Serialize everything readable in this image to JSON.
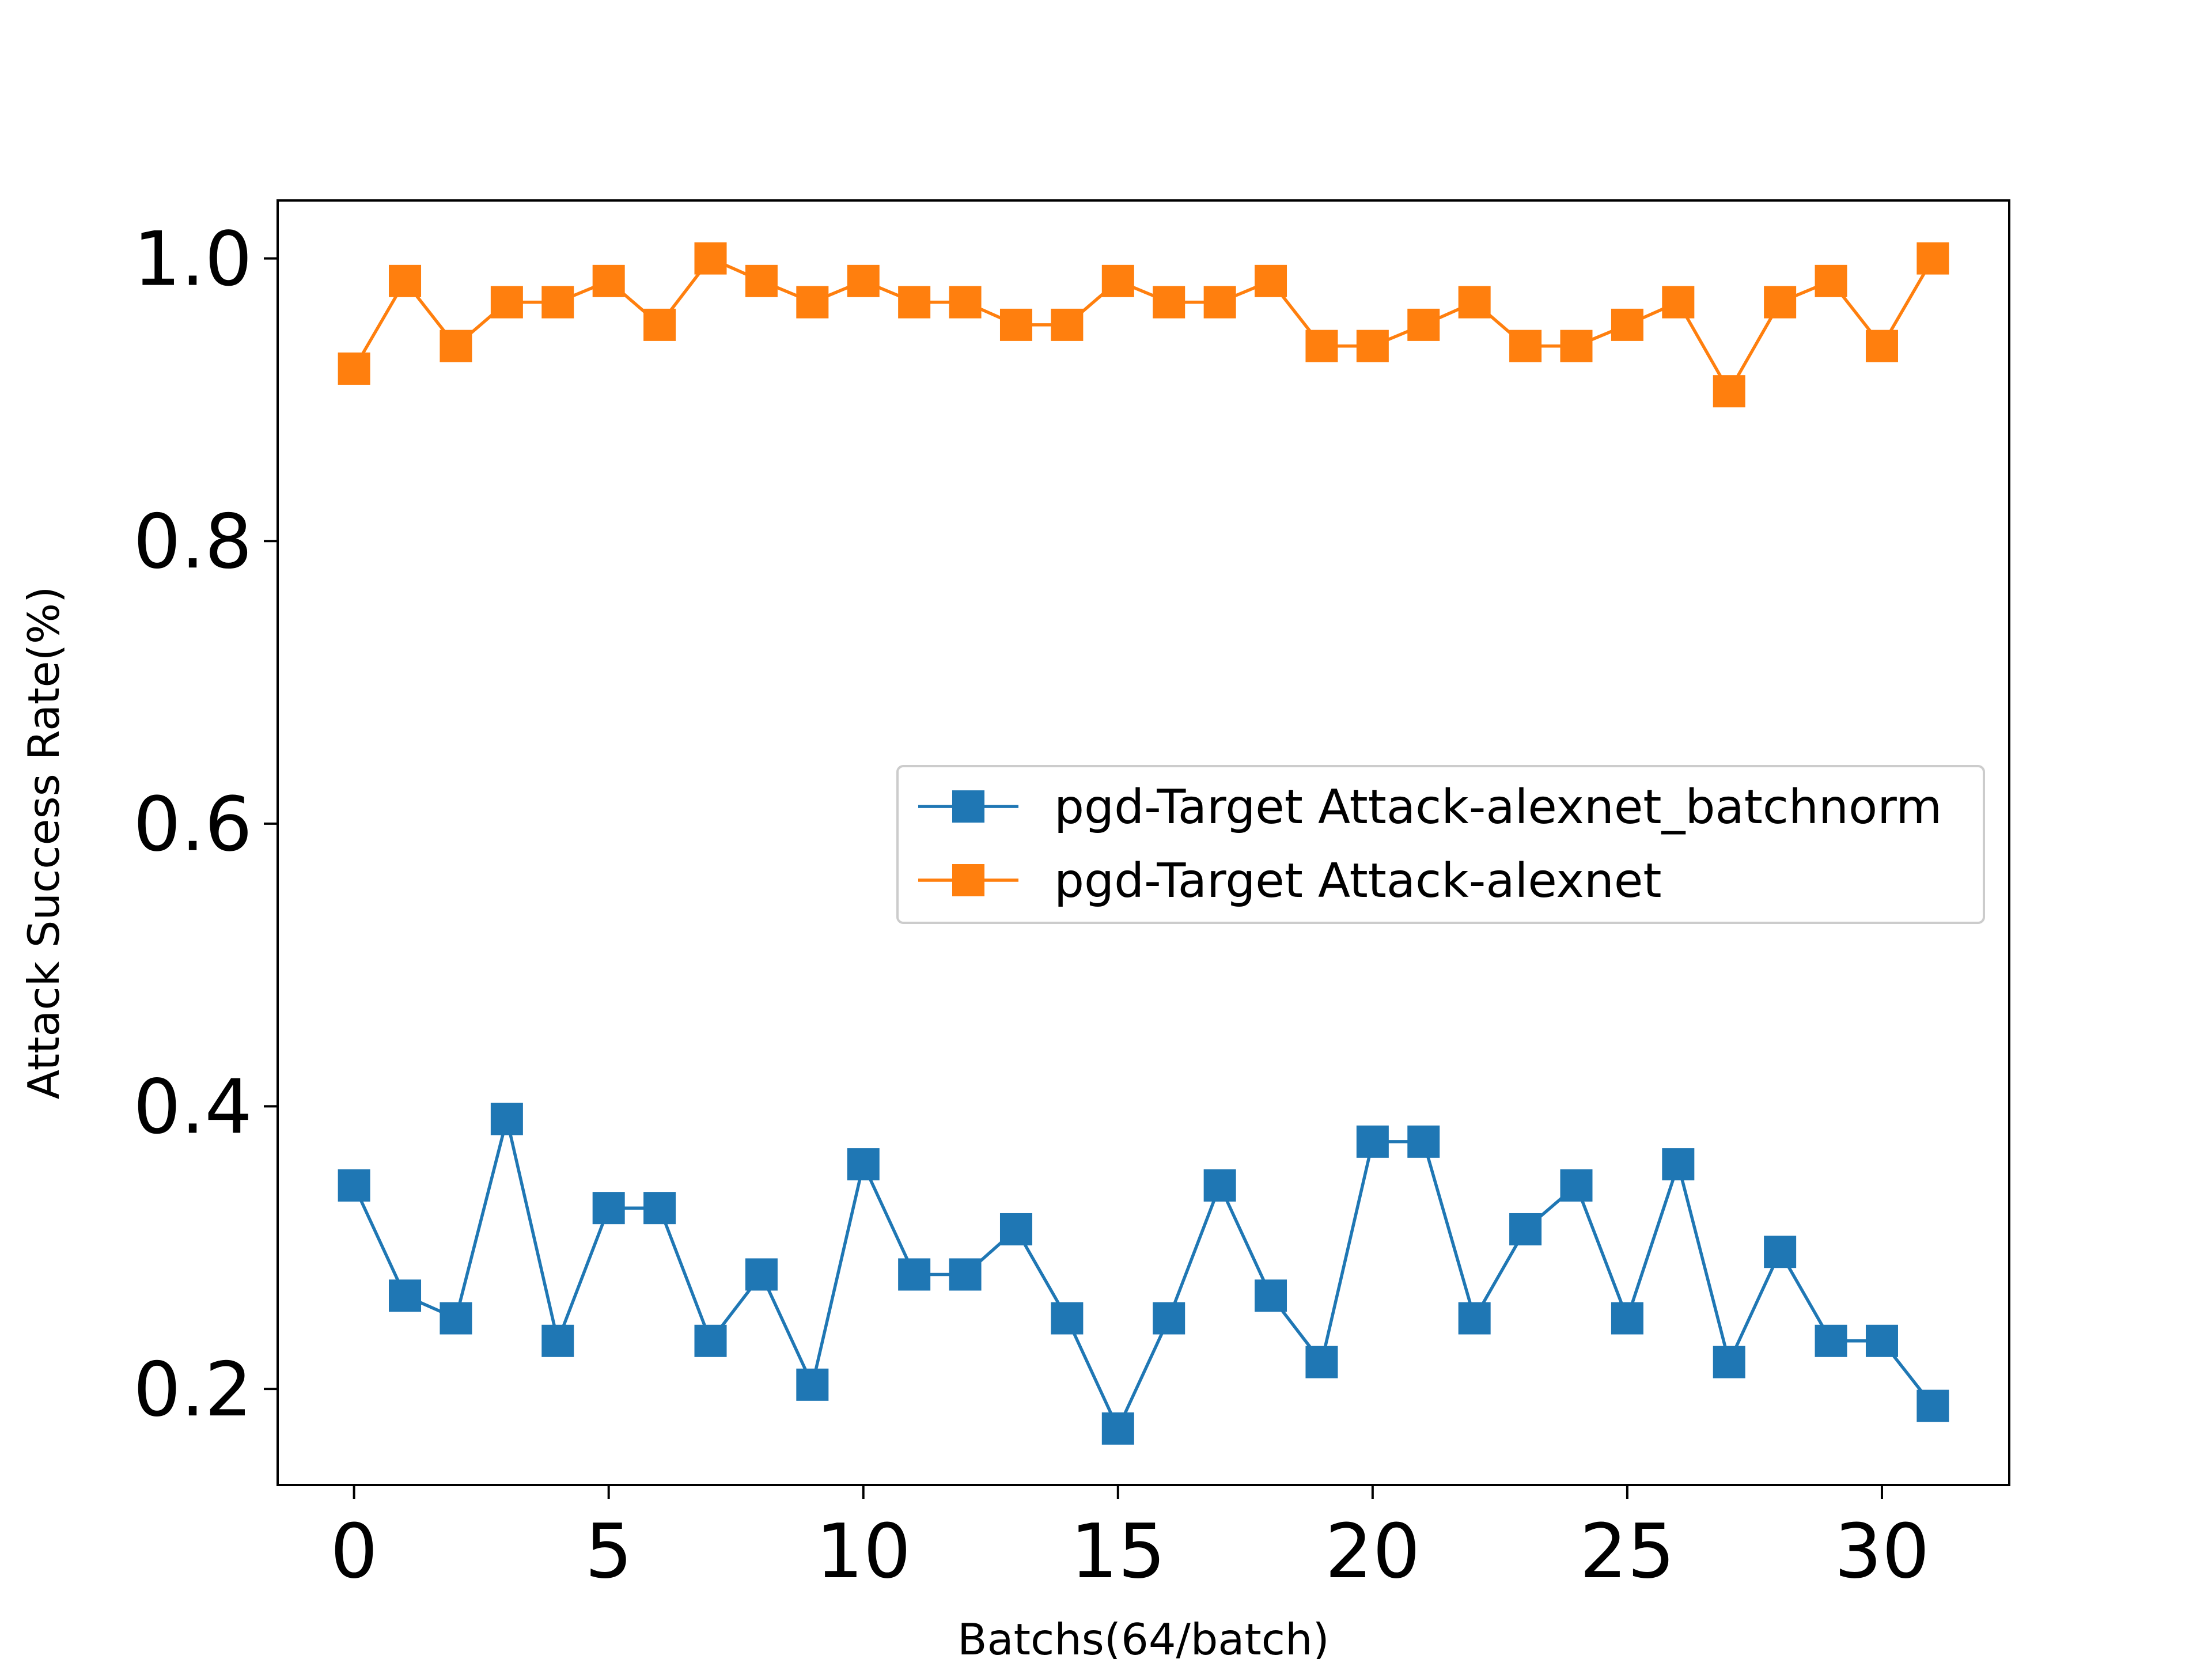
{
  "chart_data": {
    "type": "line",
    "title": "",
    "xlabel": "Batchs(64/batch)",
    "ylabel": "Attack Success Rate(%)",
    "xlim": [
      -1.5,
      32.5
    ],
    "ylim": [
      0.132,
      1.041
    ],
    "xticks": [
      0,
      5,
      10,
      15,
      20,
      25,
      30
    ],
    "yticks": [
      0.2,
      0.4,
      0.6,
      0.8,
      1.0
    ],
    "xtick_labels": [
      "0",
      "5",
      "10",
      "15",
      "20",
      "25",
      "30"
    ],
    "ytick_labels": [
      "0.2",
      "0.4",
      "0.6",
      "0.8",
      "1.0"
    ],
    "grid": false,
    "legend_position": "center-right",
    "marker": "square",
    "x": [
      0,
      1,
      2,
      3,
      4,
      5,
      6,
      7,
      8,
      9,
      10,
      11,
      12,
      13,
      14,
      15,
      16,
      17,
      18,
      19,
      20,
      21,
      22,
      23,
      24,
      25,
      26,
      27,
      28,
      29,
      30,
      31
    ],
    "series": [
      {
        "name": "pgd-Target Attack-alexnet_batchnorm",
        "color": "#1f77b4",
        "values": [
          0.344,
          0.266,
          0.25,
          0.391,
          0.234,
          0.328,
          0.328,
          0.234,
          0.281,
          0.203,
          0.359,
          0.281,
          0.281,
          0.313,
          0.25,
          0.172,
          0.25,
          0.344,
          0.266,
          0.219,
          0.375,
          0.375,
          0.25,
          0.313,
          0.344,
          0.25,
          0.359,
          0.219,
          0.297,
          0.234,
          0.234,
          0.188
        ]
      },
      {
        "name": "pgd-Target Attack-alexnet",
        "color": "#ff7f0e",
        "values": [
          0.922,
          0.984,
          0.938,
          0.969,
          0.969,
          0.984,
          0.953,
          1.0,
          0.984,
          0.969,
          0.984,
          0.969,
          0.969,
          0.953,
          0.953,
          0.984,
          0.969,
          0.969,
          0.984,
          0.938,
          0.938,
          0.953,
          0.969,
          0.938,
          0.938,
          0.953,
          0.969,
          0.906,
          0.969,
          0.984,
          0.938,
          1.0
        ]
      }
    ]
  }
}
